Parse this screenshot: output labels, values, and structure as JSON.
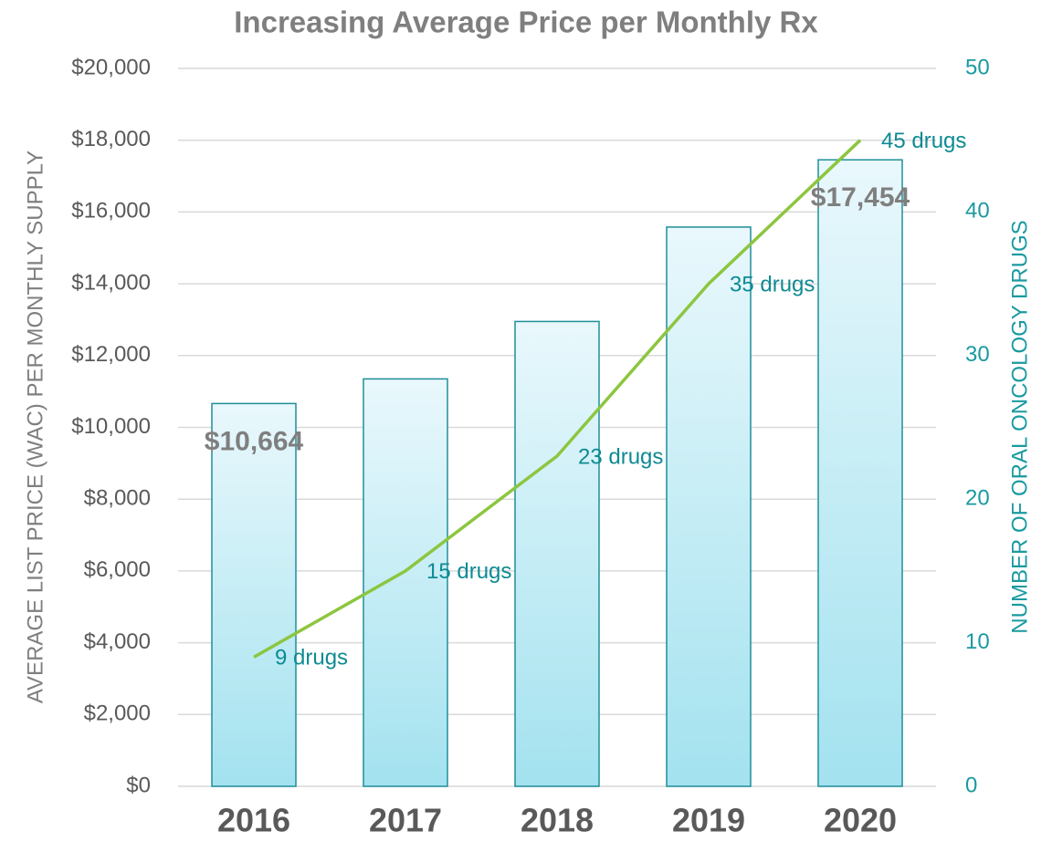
{
  "chart_data": {
    "type": "bar_line",
    "title": "Increasing Average Price per Monthly Rx",
    "y_label": "AVERAGE LIST PRICE (WAC) PER MONTHLY SUPPLY",
    "y2_label": "NUMBER OF ORAL ONCOLOGY DRUGS",
    "categories": [
      "2016",
      "2017",
      "2018",
      "2019",
      "2020"
    ],
    "series": [
      {
        "name": "Average price",
        "type": "bar",
        "color": "#1e8f9a",
        "values": [
          10664,
          11350,
          12950,
          15580,
          17454
        ],
        "value_labels": [
          "$10,664",
          null,
          null,
          null,
          "$17,454"
        ]
      },
      {
        "name": "Number of drugs",
        "type": "line",
        "axis": "y2",
        "color": "#8cc63f",
        "values": [
          9,
          15,
          23,
          35,
          45
        ],
        "value_labels": [
          "9 drugs",
          "15 drugs",
          "23 drugs",
          "35 drugs",
          "45 drugs"
        ]
      }
    ],
    "ylim": [
      0,
      20000
    ],
    "yticks": [
      {
        "value": 0,
        "label": "$0"
      },
      {
        "value": 2000,
        "label": "$2,000"
      },
      {
        "value": 4000,
        "label": "$4,000"
      },
      {
        "value": 6000,
        "label": "$6,000"
      },
      {
        "value": 8000,
        "label": "$8,000"
      },
      {
        "value": 10000,
        "label": "$10,000"
      },
      {
        "value": 12000,
        "label": "$12,000"
      },
      {
        "value": 14000,
        "label": "$14,000"
      },
      {
        "value": 16000,
        "label": "$16,000"
      },
      {
        "value": 18000,
        "label": "$18,000"
      },
      {
        "value": 20000,
        "label": "$20,000"
      }
    ],
    "y2lim": [
      0,
      50
    ],
    "y2ticks": [
      0,
      10,
      20,
      30,
      40,
      50
    ],
    "grid": true
  }
}
